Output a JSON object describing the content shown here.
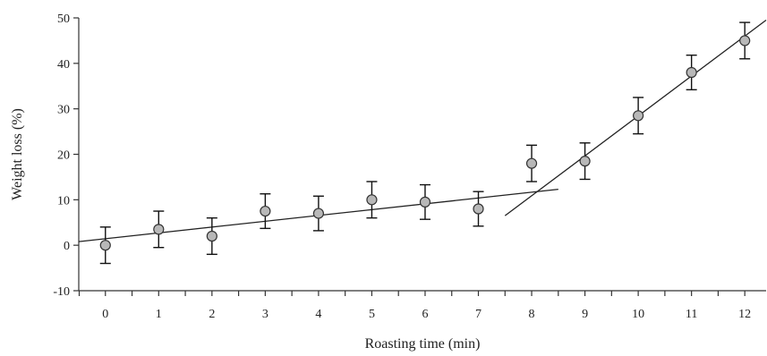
{
  "chart_data": {
    "type": "scatter",
    "title": "",
    "xlabel": "Roasting time (min)",
    "ylabel": "Weight loss  (%)",
    "xlim": [
      -0.5,
      12.4
    ],
    "ylim": [
      -10,
      50
    ],
    "xticks": [
      0,
      1,
      2,
      3,
      4,
      5,
      6,
      7,
      8,
      9,
      10,
      11,
      12
    ],
    "yticks": [
      -10,
      0,
      10,
      20,
      30,
      40,
      50
    ],
    "grid": false,
    "series": [
      {
        "x": [
          0,
          1,
          2,
          3,
          4,
          5,
          6,
          7,
          8,
          9,
          10,
          11,
          12
        ],
        "y": [
          0,
          3.5,
          2,
          7.5,
          7,
          10,
          9.5,
          8,
          18,
          18.5,
          28.5,
          38,
          45
        ],
        "error": [
          4,
          4,
          4,
          3.8,
          3.8,
          4,
          3.8,
          3.8,
          4,
          4,
          4,
          3.8,
          4
        ]
      }
    ],
    "fit_lines": [
      {
        "x": [
          -0.5,
          8.5
        ],
        "y": [
          0.8,
          12.3
        ]
      },
      {
        "x": [
          7.5,
          12.4
        ],
        "y": [
          6.5,
          49.5
        ]
      }
    ]
  }
}
